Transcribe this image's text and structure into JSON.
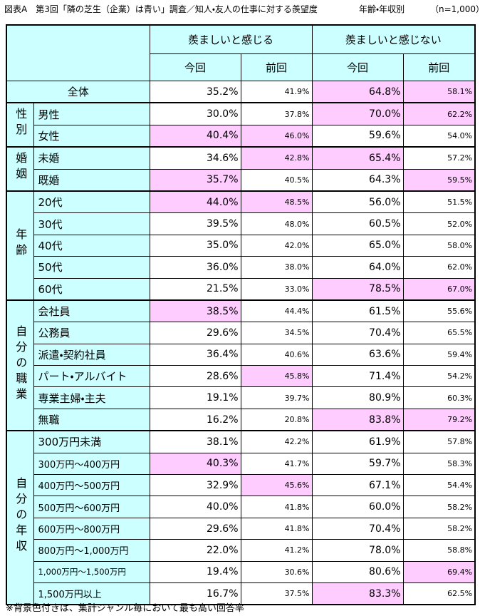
{
  "header": {
    "title": "図表A　第3回「隣の芝生（企業）は青い」調査／知人・友人の仕事に対する羨望度",
    "breakdown": "年齢・年収別",
    "sample": "（n=1,000）"
  },
  "table": {
    "column_groups": [
      "羨ましいと感じる",
      "羨ましいと感じない"
    ],
    "columns": [
      "今回",
      "前回",
      "今回",
      "前回"
    ],
    "total": {
      "label": "全体",
      "values": [
        "35.2%",
        "41.9%",
        "64.8%",
        "58.1%"
      ],
      "highlight": [
        false,
        false,
        true,
        true
      ]
    },
    "groups": [
      {
        "label": "性別",
        "rows": [
          {
            "label": "男性",
            "values": [
              "30.0%",
              "37.8%",
              "70.0%",
              "62.2%"
            ],
            "highlight": [
              false,
              false,
              true,
              true
            ]
          },
          {
            "label": "女性",
            "values": [
              "40.4%",
              "46.0%",
              "59.6%",
              "54.0%"
            ],
            "highlight": [
              true,
              true,
              false,
              false
            ]
          }
        ]
      },
      {
        "label": "婚姻",
        "rows": [
          {
            "label": "未婚",
            "values": [
              "34.6%",
              "42.8%",
              "65.4%",
              "57.2%"
            ],
            "highlight": [
              false,
              true,
              true,
              false
            ]
          },
          {
            "label": "既婚",
            "values": [
              "35.7%",
              "40.5%",
              "64.3%",
              "59.5%"
            ],
            "highlight": [
              true,
              false,
              false,
              true
            ]
          }
        ]
      },
      {
        "label": "年齢",
        "rows": [
          {
            "label": "20代",
            "values": [
              "44.0%",
              "48.5%",
              "56.0%",
              "51.5%"
            ],
            "highlight": [
              true,
              true,
              false,
              false
            ]
          },
          {
            "label": "30代",
            "values": [
              "39.5%",
              "48.0%",
              "60.5%",
              "52.0%"
            ],
            "highlight": [
              false,
              false,
              false,
              false
            ]
          },
          {
            "label": "40代",
            "values": [
              "35.0%",
              "42.0%",
              "65.0%",
              "58.0%"
            ],
            "highlight": [
              false,
              false,
              false,
              false
            ]
          },
          {
            "label": "50代",
            "values": [
              "36.0%",
              "38.0%",
              "64.0%",
              "62.0%"
            ],
            "highlight": [
              false,
              false,
              false,
              false
            ]
          },
          {
            "label": "60代",
            "values": [
              "21.5%",
              "33.0%",
              "78.5%",
              "67.0%"
            ],
            "highlight": [
              false,
              false,
              true,
              true
            ]
          }
        ]
      },
      {
        "label": "自分の職業",
        "rows": [
          {
            "label": "会社員",
            "values": [
              "38.5%",
              "44.4%",
              "61.5%",
              "55.6%"
            ],
            "highlight": [
              true,
              false,
              false,
              false
            ]
          },
          {
            "label": "公務員",
            "values": [
              "29.6%",
              "34.5%",
              "70.4%",
              "65.5%"
            ],
            "highlight": [
              false,
              false,
              false,
              false
            ]
          },
          {
            "label": "派遣・契約社員",
            "values": [
              "36.4%",
              "40.6%",
              "63.6%",
              "59.4%"
            ],
            "highlight": [
              false,
              false,
              false,
              false
            ]
          },
          {
            "label": "パート・アルバイト",
            "values": [
              "28.6%",
              "45.8%",
              "71.4%",
              "54.2%"
            ],
            "highlight": [
              false,
              true,
              false,
              false
            ]
          },
          {
            "label": "専業主婦・主夫",
            "values": [
              "19.1%",
              "39.7%",
              "80.9%",
              "60.3%"
            ],
            "highlight": [
              false,
              false,
              false,
              false
            ]
          },
          {
            "label": "無職",
            "values": [
              "16.2%",
              "20.8%",
              "83.8%",
              "79.2%"
            ],
            "highlight": [
              false,
              false,
              true,
              true
            ]
          }
        ]
      },
      {
        "label": "自分の年収",
        "rows": [
          {
            "label": "300万円未満",
            "values": [
              "38.1%",
              "42.2%",
              "61.9%",
              "57.8%"
            ],
            "highlight": [
              false,
              false,
              false,
              false
            ]
          },
          {
            "label": "300万円～400万円",
            "values": [
              "40.3%",
              "41.7%",
              "59.7%",
              "58.3%"
            ],
            "highlight": [
              true,
              false,
              false,
              false
            ]
          },
          {
            "label": "400万円～500万円",
            "values": [
              "32.9%",
              "45.6%",
              "67.1%",
              "54.4%"
            ],
            "highlight": [
              false,
              true,
              false,
              false
            ]
          },
          {
            "label": "500万円～600万円",
            "values": [
              "40.0%",
              "41.8%",
              "60.0%",
              "58.2%"
            ],
            "highlight": [
              false,
              false,
              false,
              false
            ]
          },
          {
            "label": "600万円～800万円",
            "values": [
              "29.6%",
              "41.8%",
              "70.4%",
              "58.2%"
            ],
            "highlight": [
              false,
              false,
              false,
              false
            ]
          },
          {
            "label": "800万円～1,000万円",
            "values": [
              "22.0%",
              "41.2%",
              "78.0%",
              "58.8%"
            ],
            "highlight": [
              false,
              false,
              false,
              false
            ]
          },
          {
            "label": "1,000万円～1,500万円",
            "values": [
              "19.4%",
              "30.6%",
              "80.6%",
              "69.4%"
            ],
            "highlight": [
              false,
              false,
              false,
              true
            ]
          },
          {
            "label": "1,500万円以上",
            "values": [
              "16.7%",
              "37.5%",
              "83.3%",
              "62.5%"
            ],
            "highlight": [
              false,
              false,
              true,
              false
            ]
          }
        ]
      }
    ]
  },
  "note": "※背景色付きは、集計ジャンル毎において最も高い回答率"
}
